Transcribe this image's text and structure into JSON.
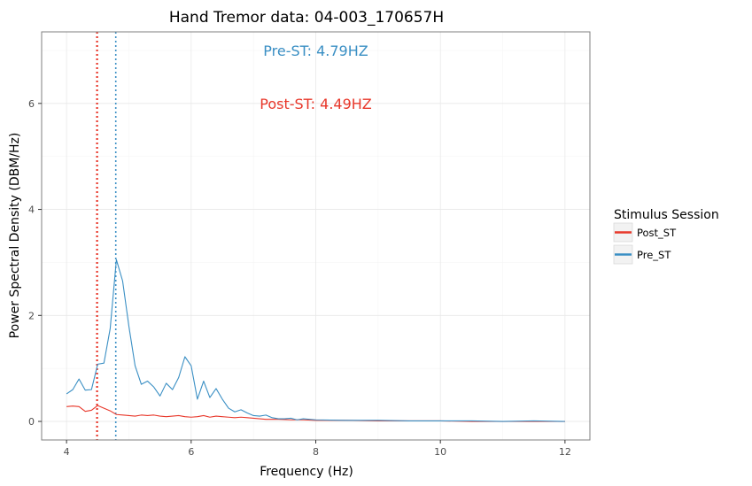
{
  "chart_data": {
    "type": "line",
    "title": "Hand Tremor data: 04-003_170657H",
    "xlabel": "Frequency (Hz)",
    "ylabel": "Power Spectral Density (DBM/Hz)",
    "xlim": [
      3.6,
      12.4
    ],
    "ylim": [
      -0.35,
      7.35
    ],
    "xticks": [
      4,
      6,
      8,
      10,
      12
    ],
    "yticks": [
      0,
      2,
      4,
      6
    ],
    "grid": true,
    "legend": {
      "title": "Stimulus Session",
      "placement": "right",
      "entries": [
        "Post_ST",
        "Pre_ST"
      ]
    },
    "series": [
      {
        "name": "Post_ST",
        "color": "#e8372a",
        "x": [
          4.0,
          4.1,
          4.2,
          4.3,
          4.4,
          4.5,
          4.6,
          4.7,
          4.8,
          4.9,
          5.0,
          5.1,
          5.2,
          5.3,
          5.4,
          5.5,
          5.6,
          5.7,
          5.8,
          5.9,
          6.0,
          6.1,
          6.2,
          6.3,
          6.4,
          6.5,
          6.6,
          6.7,
          6.8,
          6.9,
          7.0,
          7.2,
          7.4,
          7.6,
          7.8,
          8.0,
          8.5,
          9.0,
          9.5,
          10.0,
          10.5,
          11.0,
          11.5,
          12.0
        ],
        "values": [
          0.28,
          0.29,
          0.28,
          0.19,
          0.21,
          0.3,
          0.25,
          0.2,
          0.13,
          0.12,
          0.11,
          0.1,
          0.12,
          0.11,
          0.12,
          0.1,
          0.09,
          0.1,
          0.11,
          0.09,
          0.08,
          0.09,
          0.11,
          0.08,
          0.1,
          0.09,
          0.08,
          0.07,
          0.08,
          0.07,
          0.06,
          0.04,
          0.04,
          0.03,
          0.03,
          0.02,
          0.02,
          0.01,
          0.01,
          0.01,
          0.0,
          0.0,
          0.0,
          0.0
        ]
      },
      {
        "name": "Pre_ST",
        "color": "#3a8fc4",
        "x": [
          4.0,
          4.1,
          4.2,
          4.3,
          4.4,
          4.5,
          4.6,
          4.7,
          4.8,
          4.9,
          5.0,
          5.1,
          5.2,
          5.3,
          5.4,
          5.5,
          5.6,
          5.7,
          5.8,
          5.9,
          6.0,
          6.1,
          6.2,
          6.3,
          6.4,
          6.5,
          6.6,
          6.7,
          6.8,
          6.9,
          7.0,
          7.1,
          7.2,
          7.3,
          7.4,
          7.5,
          7.6,
          7.7,
          7.8,
          8.0,
          8.5,
          9.0,
          9.5,
          10.0,
          10.5,
          11.0,
          11.5,
          12.0
        ],
        "values": [
          0.52,
          0.6,
          0.8,
          0.59,
          0.6,
          1.08,
          1.1,
          1.75,
          3.05,
          2.65,
          1.8,
          1.05,
          0.7,
          0.76,
          0.65,
          0.48,
          0.72,
          0.6,
          0.83,
          1.22,
          1.05,
          0.42,
          0.76,
          0.45,
          0.62,
          0.42,
          0.25,
          0.18,
          0.22,
          0.16,
          0.11,
          0.1,
          0.12,
          0.07,
          0.05,
          0.05,
          0.06,
          0.03,
          0.05,
          0.03,
          0.02,
          0.02,
          0.01,
          0.01,
          0.01,
          0.0,
          0.01,
          0.0
        ]
      }
    ],
    "vlines": [
      {
        "series": "Post_ST",
        "x": 4.49,
        "color": "#e8372a"
      },
      {
        "series": "Pre_ST",
        "x": 4.79,
        "color": "#3a8fc4"
      }
    ],
    "annotations": [
      {
        "text": "Pre-ST:  4.79HZ",
        "x": 8.0,
        "y": 7.0,
        "color": "#3a8fc4"
      },
      {
        "text": "Post-ST:  4.49HZ",
        "x": 8.0,
        "y": 6.0,
        "color": "#e8372a"
      }
    ]
  }
}
